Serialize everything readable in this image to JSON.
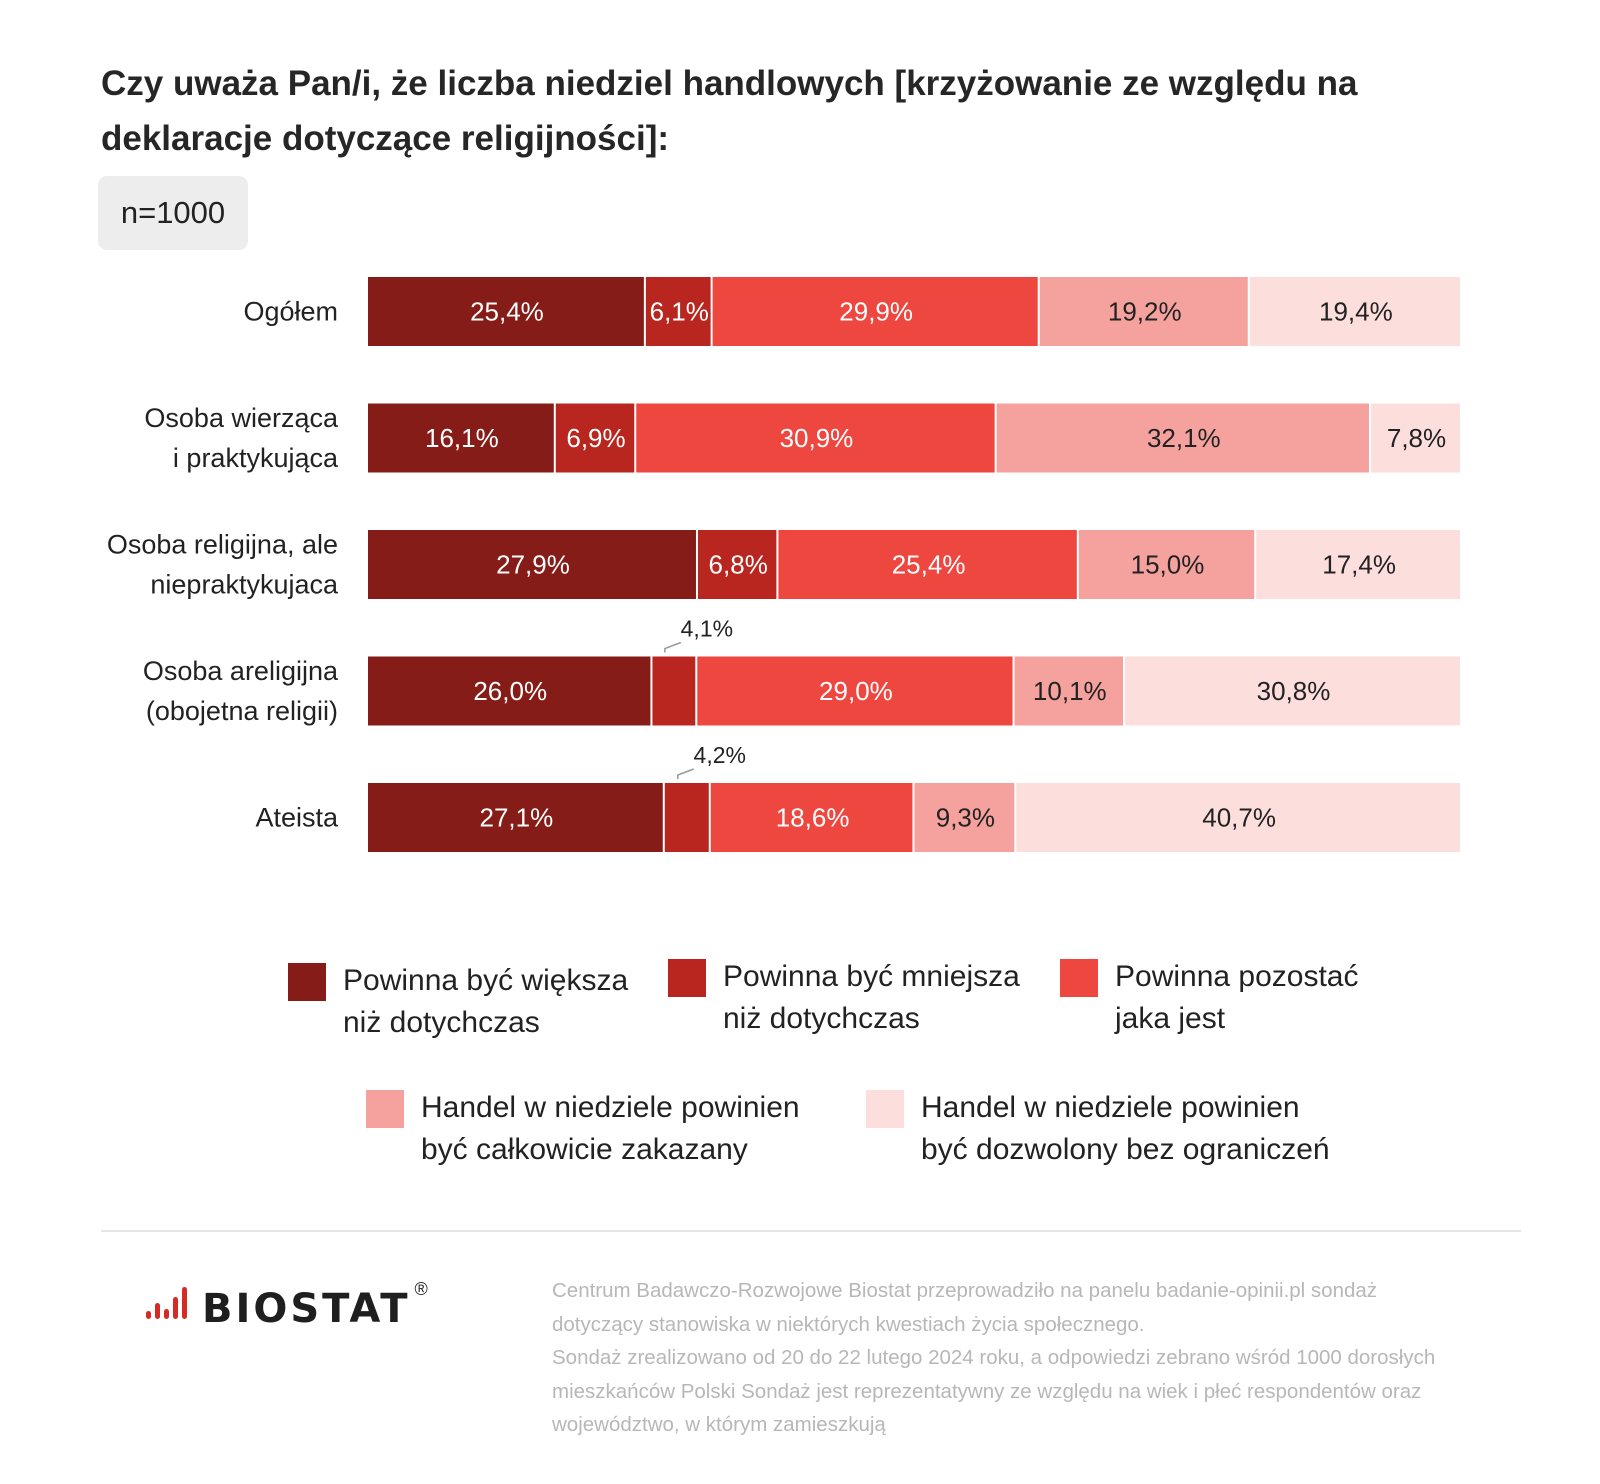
{
  "title": "Czy uważa Pan/i, że liczba niedziel handlowych [krzyżowanie ze względu na deklaracje dotyczące religijności]:",
  "sample": "n=1000",
  "chart_data": {
    "type": "bar",
    "orientation": "horizontal",
    "stacked": true,
    "categories": [
      [
        "Ogółem"
      ],
      [
        "Osoba wierząca",
        "i praktykująca"
      ],
      [
        "Osoba religijna, ale",
        "niepraktykujaca"
      ],
      [
        "Osoba areligijna",
        "(obojetna religii)"
      ],
      [
        "Ateista"
      ]
    ],
    "series": [
      {
        "name": "Powinna być większa niż  dotychczas",
        "color": "#861c17",
        "label_color": "#ffffff",
        "values": [
          25.4,
          16.1,
          27.9,
          26.0,
          27.1
        ],
        "labels": [
          "25,4%",
          "16,1%",
          "27,9%",
          "26,0%",
          "27,1%"
        ]
      },
      {
        "name": "Powinna być mniejsza niż  dotychczas",
        "color": "#b8261f",
        "label_color": "#ffffff",
        "values": [
          6.1,
          6.9,
          6.8,
          4.1,
          4.2
        ],
        "labels": [
          "6,1%",
          "6,9%",
          "6,8%",
          "4,1%",
          "4,2%"
        ],
        "callout": [
          false,
          false,
          false,
          true,
          true
        ]
      },
      {
        "name": "Powinna pozostać jaka jest",
        "color": "#ee4740",
        "label_color": "#ffffff",
        "values": [
          29.9,
          30.9,
          25.4,
          29.0,
          18.6
        ],
        "labels": [
          "29,9%",
          "30,9%",
          "25,4%",
          "29,0%",
          "18,6%"
        ]
      },
      {
        "name": "Handel w niedziele powinien być całkowicie zakazany",
        "color": "#f5a29e",
        "label_color": "#222222",
        "values": [
          19.2,
          32.1,
          15.0,
          10.1,
          9.3
        ],
        "labels": [
          "19,2%",
          "32,1%",
          "15,0%",
          "10,1%",
          "9,3%"
        ]
      },
      {
        "name": "Handel w niedziele powinien być dozwolony bez ograniczeń",
        "color": "#fcdedd",
        "label_color": "#222222",
        "values": [
          19.4,
          7.8,
          17.4,
          30.8,
          40.7
        ],
        "labels": [
          "19,4%",
          "7,8%",
          "17,4%",
          "30,8%",
          "40,7%"
        ]
      }
    ],
    "xlim": [
      0,
      100
    ],
    "grid": false,
    "legend_position": "bottom"
  },
  "legend": [
    {
      "label": "Powinna być większa\nniż  dotychczas",
      "color": "#861c17"
    },
    {
      "label": "Powinna być mniejsza\nniż  dotychczas",
      "color": "#b8261f"
    },
    {
      "label": "Powinna pozostać\njaka jest",
      "color": "#ee4740"
    },
    {
      "label": "Handel w niedziele powinien\nbyć całkowicie zakazany",
      "color": "#f5a29e"
    },
    {
      "label": "Handel w niedziele powinien\nbyć dozwolony bez ograniczeń",
      "color": "#fcdedd"
    }
  ],
  "logo": {
    "text": "BIOSTAT",
    "registered": "®",
    "icon": "bar-signal-icon",
    "color": "#d62b24"
  },
  "footnote": "Centrum Badawczo-Rozwojowe Biostat przeprowadziło na panelu badanie-opinii.pl sondaż\ndotyczący stanowiska w niektórych kwestiach życia społecznego.\nSondaż zrealizowano od 20 do 22 lutego 2024 roku, a odpowiedzi zebrano wśród 1000 dorosłych\nmieszkańców Polski Sondaż jest reprezentatywny ze względu na wiek i płeć respondentów oraz\nwojewództwo, w którym zamieszkują"
}
